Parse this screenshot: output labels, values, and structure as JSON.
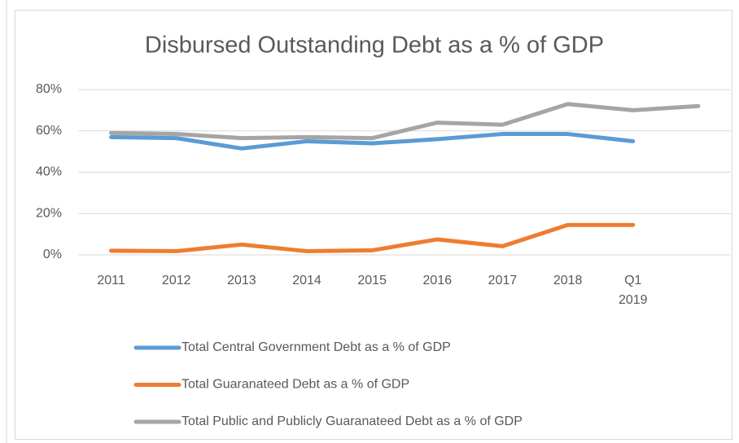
{
  "chart_data": {
    "type": "line",
    "title": "Disbursed Outstanding Debt as a % of GDP",
    "categories": [
      "2011",
      "2012",
      "2013",
      "2014",
      "2015",
      "2016",
      "2017",
      "2018",
      "Q1 2019",
      null
    ],
    "series": [
      {
        "name": "Total Central Government Debt as a % of GDP",
        "color": "#5b9bd5",
        "values": [
          57,
          56.5,
          51.5,
          55,
          54,
          56,
          58.5,
          58.5,
          55,
          null
        ]
      },
      {
        "name": "Total Guaranateed Debt as a % of GDP",
        "color": "#ed7d31",
        "values": [
          2,
          1.8,
          5,
          1.8,
          2.2,
          7.5,
          4.2,
          14.5,
          14.5,
          null
        ]
      },
      {
        "name": "Total Public and Publicly Guaranateed Debt as a % of GDP",
        "color": "#a5a5a5",
        "values": [
          59,
          58.5,
          56.5,
          57,
          56.5,
          64,
          63,
          73,
          70,
          72
        ]
      }
    ],
    "ylim": [
      0,
      80
    ],
    "yticks": [
      {
        "value": 0,
        "label": "0%"
      },
      {
        "value": 20,
        "label": "20%"
      },
      {
        "value": 40,
        "label": "40%"
      },
      {
        "value": 60,
        "label": "60%"
      },
      {
        "value": 80,
        "label": "80%"
      }
    ],
    "grid": true,
    "legend": "bottom"
  }
}
